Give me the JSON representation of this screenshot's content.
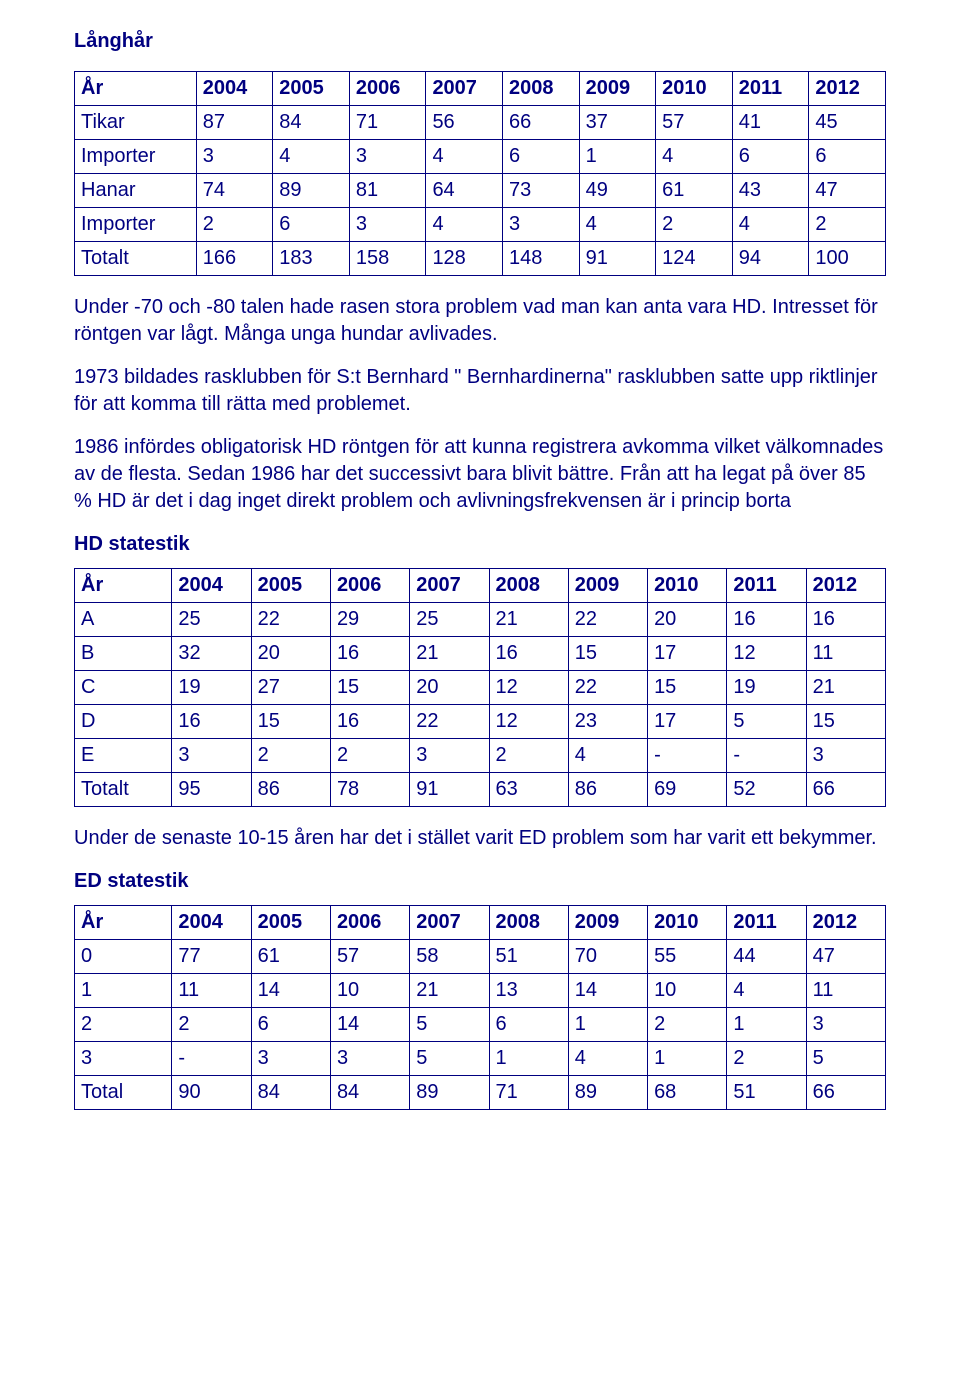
{
  "colors": {
    "text": "#000080",
    "border": "#000080",
    "background": "#ffffff"
  },
  "typography": {
    "font_family": "Comic Sans MS",
    "body_fontsize_pt": 15,
    "heading_weight": "bold"
  },
  "section_title": "Långhår",
  "table1": {
    "type": "table",
    "columns": [
      "År",
      "2004",
      "2005",
      "2006",
      "2007",
      "2008",
      "2009",
      "2010",
      "2011",
      "2012"
    ],
    "rows": [
      [
        "Tikar",
        "87",
        "84",
        "71",
        "56",
        "66",
        "37",
        "57",
        "41",
        "45"
      ],
      [
        "Importer",
        "3",
        "4",
        "3",
        "4",
        "6",
        "1",
        "4",
        "6",
        "6"
      ],
      [
        "Hanar",
        "74",
        "89",
        "81",
        "64",
        "73",
        "49",
        "61",
        "43",
        "47"
      ],
      [
        "Importer",
        "2",
        "6",
        "3",
        "4",
        "3",
        "4",
        "2",
        "4",
        "2"
      ],
      [
        "Totalt",
        "166",
        "183",
        "158",
        "128",
        "148",
        "91",
        "124",
        "94",
        "100"
      ]
    ],
    "col_align": "left",
    "border_color": "#000080"
  },
  "para1": "Under -70 och -80 talen hade rasen stora problem vad man kan anta vara HD. Intresset för röntgen var lågt. Många unga hundar avlivades.",
  "para2": "1973 bildades rasklubben för S:t Bernhard \" Bernhardinerna\" rasklubben satte upp riktlinjer för att komma till rätta med problemet.",
  "para3": "1986 infördes obligatorisk HD röntgen för att kunna registrera avkomma vilket välkomnades av de flesta. Sedan 1986 har det successivt bara blivit bättre. Från att ha legat på över 85 % HD är det i dag inget direkt problem och avlivningsfrekvensen är i princip borta",
  "hd_heading": "HD statestik",
  "table2": {
    "type": "table",
    "columns": [
      "År",
      "2004",
      "2005",
      "2006",
      "2007",
      "2008",
      "2009",
      "2010",
      "2011",
      "2012"
    ],
    "rows": [
      [
        "A",
        "25",
        "22",
        "29",
        "25",
        "21",
        "22",
        "20",
        "16",
        "16"
      ],
      [
        "B",
        "32",
        "20",
        "16",
        "21",
        "16",
        "15",
        "17",
        "12",
        "11"
      ],
      [
        "C",
        "19",
        "27",
        "15",
        "20",
        "12",
        "22",
        "15",
        "19",
        "21"
      ],
      [
        "D",
        "16",
        "15",
        "16",
        "22",
        "12",
        "23",
        "17",
        "5",
        "15"
      ],
      [
        "E",
        "3",
        "2",
        "2",
        "3",
        "2",
        "4",
        "-",
        "-",
        "3"
      ],
      [
        "Totalt",
        "95",
        "86",
        "78",
        "91",
        "63",
        "86",
        "69",
        "52",
        "66"
      ]
    ],
    "col_align": "left",
    "border_color": "#000080"
  },
  "para4": "Under de senaste 10-15 åren har det i stället varit ED problem som har varit ett bekymmer.",
  "ed_heading": "ED statestik",
  "table3": {
    "type": "table",
    "columns": [
      "År",
      "2004",
      "2005",
      "2006",
      "2007",
      "2008",
      "2009",
      "2010",
      "2011",
      "2012"
    ],
    "rows": [
      [
        "0",
        "77",
        "61",
        "57",
        "58",
        "51",
        "70",
        "55",
        "44",
        "47"
      ],
      [
        "1",
        "11",
        "14",
        "10",
        "21",
        "13",
        "14",
        "10",
        "4",
        "11"
      ],
      [
        "2",
        "2",
        "6",
        "14",
        "5",
        "6",
        "1",
        "2",
        "1",
        "3"
      ],
      [
        "3",
        "-",
        "3",
        "3",
        "5",
        "1",
        "4",
        "1",
        "2",
        "5"
      ],
      [
        "Total",
        "90",
        "84",
        "84",
        "89",
        "71",
        "89",
        "68",
        "51",
        "66"
      ]
    ],
    "col_align": "left",
    "border_color": "#000080"
  }
}
